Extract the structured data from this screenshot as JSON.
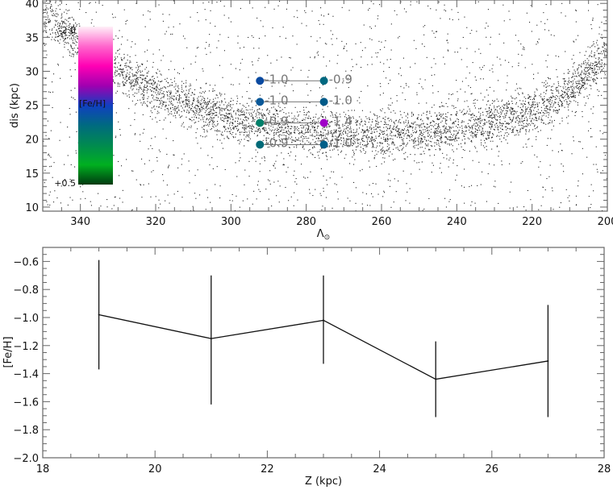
{
  "chart_data": [
    {
      "type": "scatter",
      "title": "",
      "xlabel": "Λ",
      "xlabel_sub": "⊙",
      "ylabel": "dis (kpc)",
      "xlim": [
        350,
        200
      ],
      "ylim": [
        9.4,
        40.5
      ],
      "xticks": [
        340,
        320,
        300,
        280,
        260,
        240,
        220,
        200
      ],
      "yticks": [
        10,
        15,
        20,
        25,
        30,
        35,
        40
      ],
      "stream_track": {
        "lambda": [
          352,
          340,
          320,
          300,
          280,
          260,
          240,
          220,
          210,
          200
        ],
        "dis": [
          40,
          34,
          27,
          23,
          21,
          20.5,
          21.5,
          24,
          27,
          33
        ]
      },
      "colorbar": {
        "label": "[Fe/H]",
        "top_label": "-2.0",
        "bottom_label": "+0.5",
        "stops": [
          "#fff0f8",
          "#ff66cc",
          "#ff00b4",
          "#a000b0",
          "#1040c0",
          "#006a80",
          "#008a50",
          "#00b020",
          "#003a10"
        ]
      },
      "pairs": [
        {
          "left": {
            "lambda": 292.3,
            "dis": 28.6,
            "feh": "-1.0",
            "color": "#0a4aa0"
          },
          "right": {
            "lambda": 275.3,
            "dis": 28.6,
            "feh": "-0.9",
            "color": "#006880"
          }
        },
        {
          "left": {
            "lambda": 292.3,
            "dis": 25.5,
            "feh": "-1.0",
            "color": "#0a5898"
          },
          "right": {
            "lambda": 275.3,
            "dis": 25.5,
            "feh": "-1.0",
            "color": "#005a88"
          }
        },
        {
          "left": {
            "lambda": 292.3,
            "dis": 22.4,
            "feh": "-0.9",
            "color": "#00806a"
          },
          "right": {
            "lambda": 275.3,
            "dis": 22.4,
            "feh": "-1.4",
            "color": "#a000c8"
          }
        },
        {
          "left": {
            "lambda": 292.3,
            "dis": 19.2,
            "feh": "-0.9",
            "color": "#006a78"
          },
          "right": {
            "lambda": 275.3,
            "dis": 19.2,
            "feh": "-1.0",
            "color": "#005f88"
          }
        }
      ]
    },
    {
      "type": "line",
      "title": "",
      "xlabel": "Z (kpc)",
      "ylabel": "[Fe/H]",
      "xlim": [
        18,
        28
      ],
      "ylim": [
        -2.0,
        -0.5
      ],
      "xticks": [
        "18",
        "20",
        "22",
        "24",
        "26",
        "28"
      ],
      "yticks": [
        "-0.6",
        "-0.8",
        "-1.0",
        "-1.2",
        "-1.4",
        "-1.6",
        "-1.8",
        "-2.0"
      ],
      "x": [
        19,
        21,
        23,
        25,
        27
      ],
      "y": [
        -0.98,
        -1.15,
        -1.02,
        -1.44,
        -1.31
      ],
      "err_high": [
        -0.59,
        -0.7,
        -0.7,
        -1.17,
        -0.91
      ],
      "err_low": [
        -1.37,
        -1.62,
        -1.33,
        -1.71,
        -1.71
      ]
    }
  ]
}
